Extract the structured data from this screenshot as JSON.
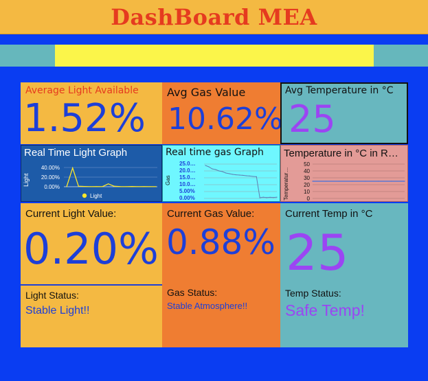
{
  "header": {
    "title": "DashBoard MEA"
  },
  "colors": {
    "background": "#0a3df2",
    "tile_orange": "#f4b942",
    "tile_deep_orange": "#ef7d32",
    "tile_teal": "#68b7bf",
    "value_blue": "#1d3fd8",
    "value_purple": "#9b45f3",
    "label_red": "#e53b1f"
  },
  "averages": {
    "light": {
      "label": "Average Light Available",
      "value": "1.52%"
    },
    "gas": {
      "label": "Avg Gas Value",
      "value": "10.62%"
    },
    "temp": {
      "label": "Avg Temperature in °C",
      "value": "25"
    }
  },
  "charts": {
    "light": {
      "title": "Real Time Light Graph",
      "ylabel": "Light",
      "yticks": [
        "40.00%",
        "20.00%",
        "0.00%"
      ],
      "legend": "Light"
    },
    "gas": {
      "title": "Real time gas Graph",
      "ylabel": "Gas",
      "yticks": [
        "25.0…",
        "20.0…",
        "15.0…",
        "10.0…",
        "5.00%",
        "0.00%"
      ]
    },
    "temp": {
      "title": "Temperature in °C in R…",
      "ylabel": "Temperatur…",
      "yticks": [
        "50",
        "40",
        "30",
        "20",
        "10",
        "0"
      ]
    }
  },
  "chart_data": [
    {
      "type": "line",
      "title": "Real Time Light Graph",
      "ylabel": "Light",
      "ylim": [
        0,
        40
      ],
      "series": [
        {
          "name": "Light",
          "values": [
            0,
            39,
            1,
            0.5,
            0.2,
            0.3,
            0.1,
            6,
            1,
            0.3,
            0.2,
            0.4,
            0.2,
            0.3,
            0.1,
            0.2
          ]
        }
      ]
    },
    {
      "type": "line",
      "title": "Real time gas Graph",
      "ylabel": "Gas",
      "ylim": [
        0,
        25
      ],
      "series": [
        {
          "values": [
            24,
            23,
            21.5,
            21,
            20,
            19.5,
            18.5,
            18,
            17.5,
            17.2,
            17,
            16.8,
            16.5,
            16.3,
            16,
            15.8,
            0.5,
            0.9,
            0.6,
            0.8,
            0.7,
            0.9
          ]
        }
      ]
    },
    {
      "type": "line",
      "title": "Temperature in °C in R…",
      "ylabel": "Temperatur…",
      "ylim": [
        0,
        50
      ],
      "series": [
        {
          "values": [
            25,
            25,
            25,
            25,
            25,
            25,
            25,
            25
          ]
        }
      ]
    }
  ],
  "current": {
    "light": {
      "label": "Current Light Value:",
      "value": "0.20%"
    },
    "gas": {
      "label": "Current Gas Value:",
      "value": "0.88%"
    },
    "temp": {
      "label": "Current Temp in °C",
      "value": "25"
    }
  },
  "status": {
    "light": {
      "label": "Light Status:",
      "value": "Stable Light!!"
    },
    "gas": {
      "label": "Gas Status:",
      "value": "Stable Atmosphere!!"
    },
    "temp": {
      "label": "Temp Status:",
      "value": "Safe Temp!"
    }
  }
}
